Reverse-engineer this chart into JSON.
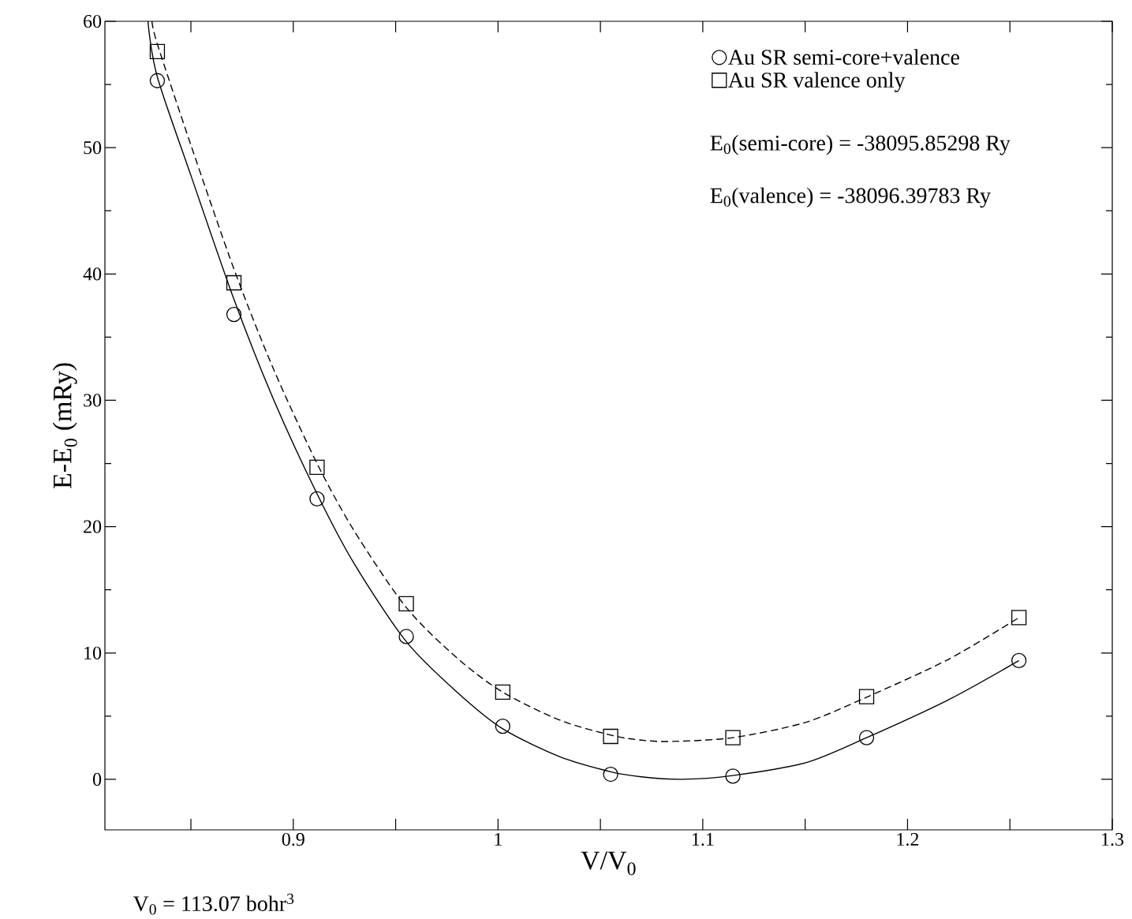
{
  "chart_data": {
    "type": "scatter",
    "xlabel": "V/V$_{0}$",
    "ylabel": "E-E$_{0}$ (mRy)",
    "xlim": [
      0.808,
      1.3
    ],
    "ylim": [
      -4,
      60
    ],
    "xticks": [
      {
        "value": 0.85,
        "label": null
      },
      0.9,
      {
        "value": 0.95,
        "label": null
      },
      1,
      {
        "value": 1.05,
        "label": null
      },
      1.1,
      {
        "value": 1.15,
        "label": null
      },
      1.2,
      {
        "value": 1.25,
        "label": null
      },
      1.3
    ],
    "yticks": [
      0,
      10,
      20,
      30,
      40,
      50,
      60
    ],
    "legend": "top right",
    "grid": false,
    "annotations": [
      "E$_{0}$(semi-core) = -38095.85298 Ry",
      "E$_{0}$(valence) = -38096.39783 Ry",
      "V$_{0}$ = 113.07 bohr$^{3}$"
    ],
    "series": [
      {
        "name": "Au SR semi-core+valence",
        "type": "scatter",
        "marker": "circle",
        "color": "#000000",
        "x": [
          0.8336,
          0.871,
          0.9116,
          0.9552,
          1.0023,
          1.055,
          1.1147,
          1.18,
          1.2544
        ],
        "values": [
          55.3,
          36.8,
          22.2,
          11.3,
          4.2,
          0.4,
          0.25,
          3.3,
          9.4
        ]
      },
      {
        "name": "Au SR valence only",
        "type": "scatter",
        "marker": "square",
        "color": "#000000",
        "x": [
          0.8336,
          0.871,
          0.9116,
          0.9552,
          1.0023,
          1.055,
          1.1147,
          1.18,
          1.2544
        ],
        "values": [
          57.6,
          39.3,
          24.7,
          13.9,
          6.9,
          3.4,
          3.3,
          6.55,
          12.8
        ]
      },
      {
        "type": "line",
        "line_style": "solid",
        "color": "#000000",
        "x": [
          0.829,
          0.8336,
          0.85,
          0.871,
          0.89,
          0.9116,
          0.93,
          0.9552,
          0.98,
          1.0023,
          1.03,
          1.055,
          1.07,
          1.09,
          1.1147,
          1.15,
          1.18,
          1.22,
          1.2544
        ],
        "values": [
          60,
          55.6,
          47.8,
          38.0,
          30.2,
          22.6,
          17.0,
          10.9,
          6.9,
          4.0,
          1.8,
          0.6,
          0.2,
          0.0,
          0.3,
          1.3,
          3.3,
          6.3,
          9.4
        ]
      },
      {
        "type": "line",
        "line_style": "dashed",
        "color": "#000000",
        "x": [
          0.831,
          0.8336,
          0.85,
          0.871,
          0.89,
          0.9116,
          0.93,
          0.9552,
          0.98,
          1.0023,
          1.03,
          1.055,
          1.07,
          1.085,
          1.1147,
          1.15,
          1.18,
          1.22,
          1.2544
        ],
        "values": [
          60,
          58.2,
          50.2,
          40.4,
          32.6,
          25.0,
          19.6,
          13.6,
          9.6,
          6.9,
          4.7,
          3.5,
          3.1,
          3.0,
          3.3,
          4.5,
          6.5,
          9.5,
          12.8
        ]
      }
    ]
  }
}
